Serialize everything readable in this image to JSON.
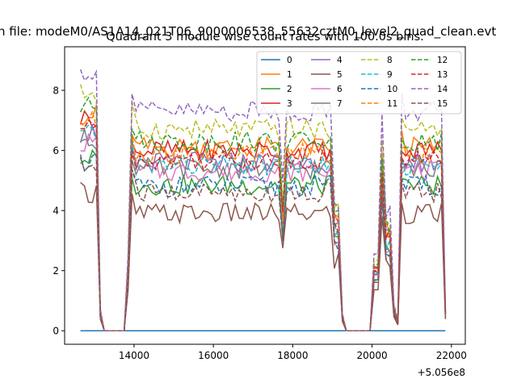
{
  "chart_data": {
    "type": "line",
    "suptitle": "n file: modeM0/AS1A14_021T06_9000006538_55632cztM0_level2_quad_clean.evt",
    "title": "Quadrant 3 module wise count rates with 100.0s bins.",
    "xlabel": "",
    "ylabel": "",
    "x_offset_label": "+5.056e8",
    "xlim": [
      12250,
      22350
    ],
    "ylim": [
      -0.45,
      9.45
    ],
    "xticks": [
      14000,
      16000,
      18000,
      20000,
      22000
    ],
    "xtick_labels": [
      "14000",
      "16000",
      "18000",
      "20000",
      "22000"
    ],
    "yticks": [
      0,
      2,
      4,
      6,
      8
    ],
    "ytick_labels": [
      "0",
      "2",
      "4",
      "6",
      "8"
    ],
    "grid": false,
    "legend_placement": "top-right",
    "legend_columns": 4,
    "x": {
      "start": 12650,
      "step": 100,
      "count": 93
    },
    "series": [
      {
        "name": "0",
        "color": "#1f77b4",
        "dash": "solid",
        "level": 0
      },
      {
        "name": "1",
        "color": "#ff7f0e",
        "dash": "solid",
        "level": 6.1
      },
      {
        "name": "2",
        "color": "#2ca02c",
        "dash": "solid",
        "level": 4.85
      },
      {
        "name": "3",
        "color": "#d62728",
        "dash": "solid",
        "level": 6.0
      },
      {
        "name": "4",
        "color": "#9467bd",
        "dash": "solid",
        "level": 5.6
      },
      {
        "name": "5",
        "color": "#8c564b",
        "dash": "solid",
        "level": 3.9
      },
      {
        "name": "6",
        "color": "#e377c2",
        "dash": "solid",
        "level": 5.3
      },
      {
        "name": "7",
        "color": "#7f7f7f",
        "dash": "solid",
        "level": 5.4
      },
      {
        "name": "8",
        "color": "#bcbd22",
        "dash": "dashed",
        "level": 6.7
      },
      {
        "name": "9",
        "color": "#17becf",
        "dash": "dashed",
        "level": 5.5
      },
      {
        "name": "10",
        "color": "#1f77b4",
        "dash": "dashed",
        "level": 4.8
      },
      {
        "name": "11",
        "color": "#ff7f0e",
        "dash": "dashed",
        "level": 5.9
      },
      {
        "name": "12",
        "color": "#2ca02c",
        "dash": "dashed",
        "level": 6.3
      },
      {
        "name": "13",
        "color": "#d62728",
        "dash": "dashed",
        "level": 5.7
      },
      {
        "name": "14",
        "color": "#9467bd",
        "dash": "dashed",
        "level": 7.3
      },
      {
        "name": "15",
        "color": "#8c564b",
        "dash": "dashed",
        "level": 4.6
      }
    ]
  }
}
